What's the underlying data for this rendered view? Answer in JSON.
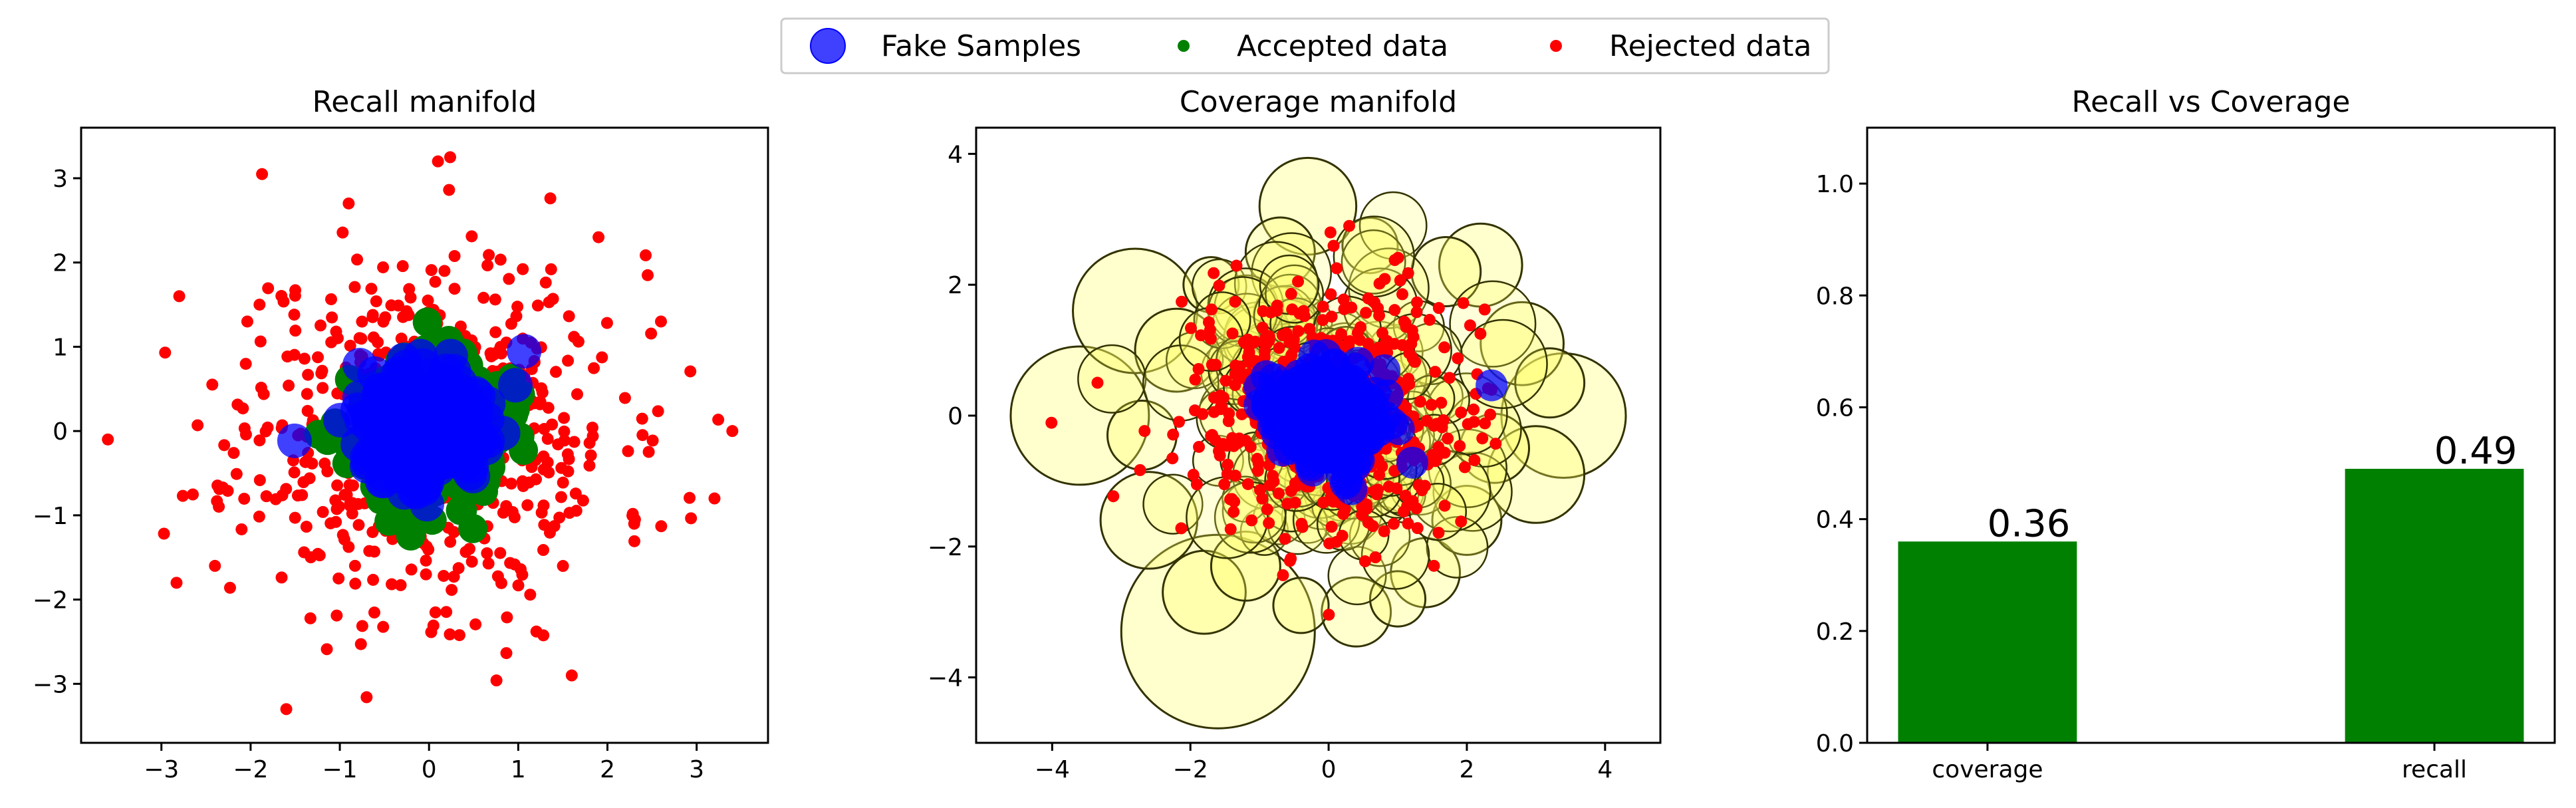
{
  "legend": {
    "position": "top-center",
    "entries": [
      {
        "label": "Fake Samples",
        "color": "#0000ff",
        "marker": "circle-large"
      },
      {
        "label": "Accepted data",
        "color": "#008000",
        "marker": "circle-small"
      },
      {
        "label": "Rejected data",
        "color": "#ff0000",
        "marker": "circle-small"
      }
    ]
  },
  "colors": {
    "fake": "#0000ff",
    "accepted": "#008000",
    "rejected": "#ff0000",
    "coverage_circle_fill": "#ffff66",
    "coverage_circle_stroke": "#333300",
    "bar": "#008000"
  },
  "chart_data": [
    {
      "type": "scatter",
      "title": "Recall manifold",
      "xlabel": "",
      "ylabel": "",
      "xlim": [
        -3.9,
        3.8
      ],
      "ylim": [
        -3.7,
        3.6
      ],
      "xticks": [
        -3,
        -2,
        -1,
        0,
        1,
        2,
        3
      ],
      "yticks": [
        -3,
        -2,
        -1,
        0,
        1,
        2,
        3
      ],
      "grid": false,
      "series": [
        {
          "name": "Rejected data",
          "distribution": "gaussian",
          "n": 600,
          "std": 1.05,
          "sample_points": [
            [
              -3.6,
              -0.1
            ],
            [
              3.4,
              0.0
            ],
            [
              -2.8,
              1.6
            ],
            [
              0.1,
              3.2
            ],
            [
              -1.6,
              -3.3
            ],
            [
              2.3,
              -1.1
            ],
            [
              3.2,
              -0.8
            ],
            [
              -2.4,
              -1.6
            ],
            [
              1.9,
              2.3
            ],
            [
              2.6,
              1.3
            ],
            [
              -1.9,
              1.5
            ],
            [
              1.6,
              -2.9
            ]
          ]
        },
        {
          "name": "Accepted data",
          "distribution": "gaussian",
          "n": 300,
          "std": 0.42
        },
        {
          "name": "Fake Samples",
          "distribution": "gaussian",
          "n": 300,
          "std": 0.32
        }
      ]
    },
    {
      "type": "scatter",
      "title": "Coverage manifold",
      "xlabel": "",
      "ylabel": "",
      "xlim": [
        -5.1,
        4.8
      ],
      "ylim": [
        -5.0,
        4.4
      ],
      "xticks": [
        -4,
        -2,
        0,
        2,
        4
      ],
      "yticks": [
        -4,
        -2,
        0,
        2,
        4
      ],
      "grid": false,
      "series": [
        {
          "name": "Rejected data",
          "distribution": "gaussian",
          "n": 600,
          "std": 1.0
        },
        {
          "name": "Fake Samples",
          "distribution": "gaussian",
          "n": 300,
          "std": 0.35
        }
      ],
      "coverage_circles": [
        {
          "cx": -3.6,
          "cy": 0.0,
          "r": 1.0
        },
        {
          "cx": -1.6,
          "cy": -3.3,
          "r": 1.4
        },
        {
          "cx": -2.8,
          "cy": 1.6,
          "r": 0.9
        },
        {
          "cx": 3.4,
          "cy": 0.0,
          "r": 0.9
        },
        {
          "cx": -0.3,
          "cy": 3.2,
          "r": 0.7
        },
        {
          "cx": 3.0,
          "cy": -0.9,
          "r": 0.7
        },
        {
          "cx": 2.2,
          "cy": 2.3,
          "r": 0.6
        },
        {
          "cx": -2.6,
          "cy": -1.6,
          "r": 0.7
        },
        {
          "cx": -1.8,
          "cy": -2.7,
          "r": 0.6
        },
        {
          "cx": 0.4,
          "cy": -3.0,
          "r": 0.5
        },
        {
          "cx": 2.8,
          "cy": 1.1,
          "r": 0.6
        },
        {
          "cx": -2.2,
          "cy": 1.0,
          "r": 0.6
        },
        {
          "cx": 1.4,
          "cy": -2.4,
          "r": 0.5
        },
        {
          "cx": -0.7,
          "cy": 2.5,
          "r": 0.5
        },
        {
          "cx": 2.4,
          "cy": -0.5,
          "r": 0.5
        },
        {
          "cx": -2.7,
          "cy": -0.3,
          "r": 0.5
        },
        {
          "cx": 1.7,
          "cy": 2.2,
          "r": 0.5
        },
        {
          "cx": 0.6,
          "cy": 2.6,
          "r": 0.4
        },
        {
          "cx": -1.2,
          "cy": -2.3,
          "r": 0.5
        },
        {
          "cx": 2.0,
          "cy": -1.6,
          "r": 0.5
        },
        {
          "cx": 3.2,
          "cy": 0.5,
          "r": 0.5
        },
        {
          "cx": -1.7,
          "cy": 2.0,
          "r": 0.4
        },
        {
          "cx": 1.0,
          "cy": -2.8,
          "r": 0.4
        },
        {
          "cx": -0.4,
          "cy": -2.9,
          "r": 0.4
        }
      ]
    },
    {
      "type": "bar",
      "title": "Recall vs Coverage",
      "xlabel": "",
      "ylabel": "",
      "categories": [
        "coverage",
        "recall"
      ],
      "values": [
        0.36,
        0.49
      ],
      "data_labels": [
        "0.36",
        "0.49"
      ],
      "ylim": [
        0.0,
        1.1
      ],
      "yticks": [
        0.0,
        0.2,
        0.4,
        0.6,
        0.8,
        1.0
      ],
      "grid": false
    }
  ]
}
